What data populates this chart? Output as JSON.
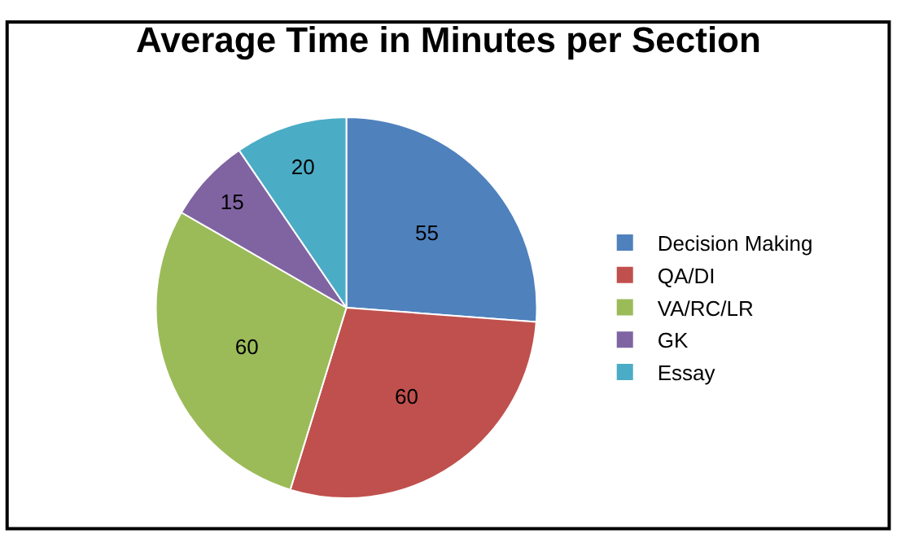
{
  "chart_data": {
    "type": "pie",
    "title": "Average Time in Minutes per Section",
    "categories": [
      "Decision Making",
      "QA/DI",
      "VA/RC/LR",
      "GK",
      "Essay"
    ],
    "values": [
      55,
      60,
      60,
      15,
      20
    ],
    "colors": [
      "#4f81bd",
      "#c0504d",
      "#9bbb59",
      "#8064a2",
      "#4bacc6"
    ],
    "data_labels": true,
    "legend": "right"
  }
}
